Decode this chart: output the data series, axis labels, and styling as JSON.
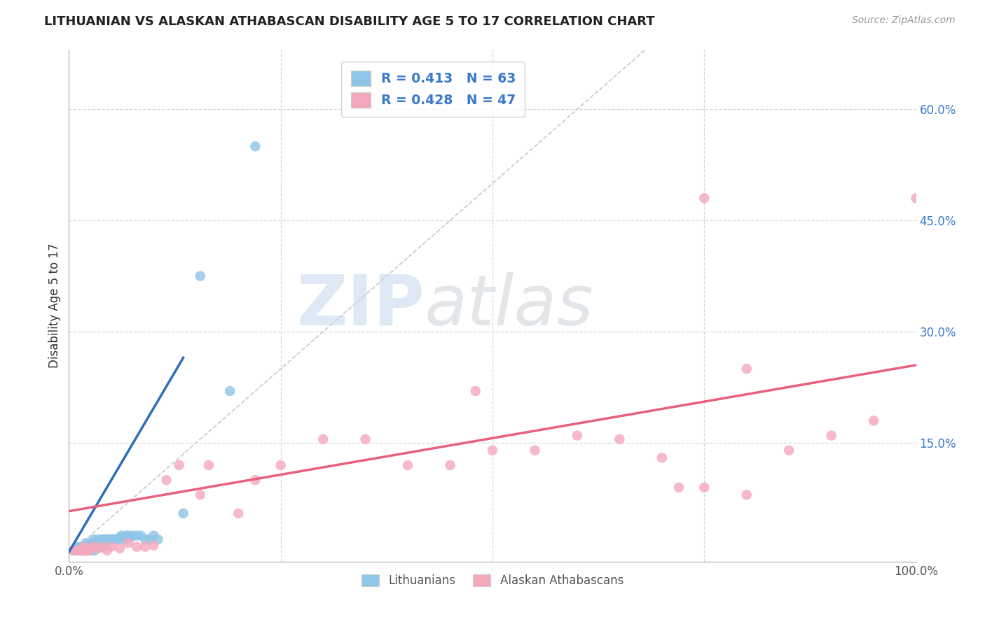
{
  "title": "LITHUANIAN VS ALASKAN ATHABASCAN DISABILITY AGE 5 TO 17 CORRELATION CHART",
  "source": "Source: ZipAtlas.com",
  "ylabel": "Disability Age 5 to 17",
  "xlim": [
    0,
    1.0
  ],
  "ylim": [
    -0.01,
    0.68
  ],
  "blue_color": "#8EC5E8",
  "pink_color": "#F4A8BC",
  "blue_line_color": "#2B6FBB",
  "pink_line_color": "#E8607A",
  "diag_color": "#C8C8C8",
  "grid_color": "#D8D8D8",
  "blue_label": "R = 0.413   N = 63",
  "pink_label": "R = 0.428   N = 47",
  "legend_text_color": "#3A7ACC",
  "ytick_color": "#3A7ACC",
  "watermark_zip": "ZIP",
  "watermark_atlas": "atlas",
  "blue_line_x": [
    0.0,
    0.135
  ],
  "blue_line_y": [
    0.003,
    0.265
  ],
  "pink_line_x": [
    0.0,
    1.0
  ],
  "pink_line_y": [
    0.058,
    0.255
  ],
  "blue_x": [
    0.005,
    0.008,
    0.008,
    0.01,
    0.01,
    0.01,
    0.01,
    0.012,
    0.012,
    0.014,
    0.015,
    0.015,
    0.016,
    0.016,
    0.018,
    0.018,
    0.02,
    0.02,
    0.02,
    0.02,
    0.022,
    0.022,
    0.024,
    0.025,
    0.025,
    0.025,
    0.026,
    0.028,
    0.028,
    0.03,
    0.03,
    0.03,
    0.032,
    0.035,
    0.035,
    0.038,
    0.04,
    0.04,
    0.042,
    0.044,
    0.045,
    0.048,
    0.05,
    0.052,
    0.055,
    0.058,
    0.06,
    0.062,
    0.065,
    0.068,
    0.07,
    0.072,
    0.075,
    0.08,
    0.085,
    0.09,
    0.095,
    0.1,
    0.105,
    0.135,
    0.155,
    0.19,
    0.22
  ],
  "blue_y": [
    0.005,
    0.005,
    0.008,
    0.005,
    0.006,
    0.008,
    0.01,
    0.005,
    0.008,
    0.005,
    0.005,
    0.01,
    0.005,
    0.008,
    0.005,
    0.01,
    0.005,
    0.008,
    0.01,
    0.015,
    0.005,
    0.01,
    0.008,
    0.005,
    0.01,
    0.015,
    0.008,
    0.008,
    0.015,
    0.005,
    0.01,
    0.02,
    0.015,
    0.01,
    0.02,
    0.015,
    0.01,
    0.02,
    0.02,
    0.015,
    0.02,
    0.02,
    0.02,
    0.02,
    0.02,
    0.02,
    0.022,
    0.025,
    0.02,
    0.025,
    0.025,
    0.022,
    0.025,
    0.025,
    0.025,
    0.02,
    0.02,
    0.025,
    0.02,
    0.055,
    0.375,
    0.22,
    0.55
  ],
  "pink_x": [
    0.005,
    0.008,
    0.01,
    0.012,
    0.015,
    0.016,
    0.018,
    0.02,
    0.022,
    0.024,
    0.026,
    0.03,
    0.035,
    0.04,
    0.045,
    0.05,
    0.06,
    0.07,
    0.08,
    0.09,
    0.1,
    0.115,
    0.13,
    0.155,
    0.165,
    0.2,
    0.22,
    0.25,
    0.3,
    0.35,
    0.4,
    0.45,
    0.5,
    0.55,
    0.6,
    0.65,
    0.7,
    0.72,
    0.75,
    0.8,
    0.85,
    0.9,
    0.95,
    1.0,
    0.75,
    0.8,
    0.48
  ],
  "pink_y": [
    0.005,
    0.005,
    0.005,
    0.005,
    0.005,
    0.005,
    0.01,
    0.005,
    0.005,
    0.005,
    0.008,
    0.01,
    0.008,
    0.01,
    0.005,
    0.01,
    0.008,
    0.015,
    0.01,
    0.01,
    0.012,
    0.1,
    0.12,
    0.08,
    0.12,
    0.055,
    0.1,
    0.12,
    0.155,
    0.155,
    0.12,
    0.12,
    0.14,
    0.14,
    0.16,
    0.155,
    0.13,
    0.09,
    0.09,
    0.08,
    0.14,
    0.16,
    0.18,
    0.48,
    0.48,
    0.25,
    0.22
  ]
}
